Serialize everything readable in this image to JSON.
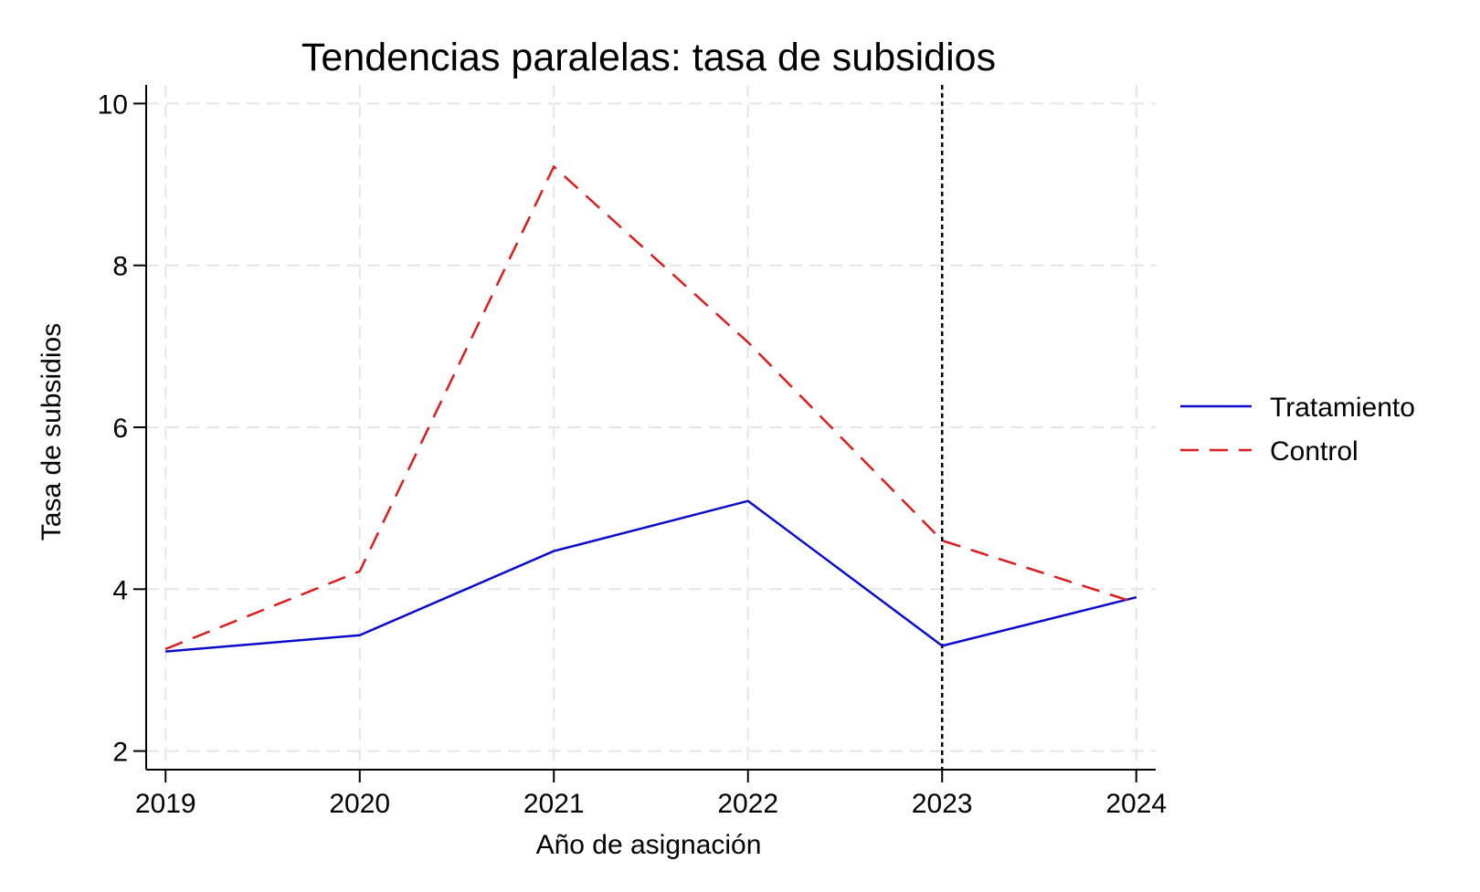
{
  "chart_data": {
    "type": "line",
    "title": "Tendencias paralelas: tasa de subsidios",
    "xlabel": "Año de asignación",
    "ylabel": "Tasa de subsidios",
    "x": [
      2019,
      2020,
      2021,
      2022,
      2023,
      2024
    ],
    "x_tick_labels": [
      "2019",
      "2020",
      "2021",
      "2022",
      "2023",
      "2024"
    ],
    "y_ticks": [
      2,
      4,
      6,
      8,
      10
    ],
    "y_tick_labels": [
      "2",
      "4",
      "6",
      "8",
      "10"
    ],
    "xlim": [
      2018.9,
      2024.1
    ],
    "ylim": [
      1.77,
      10.23
    ],
    "grid": true,
    "legend_position": "right",
    "reference_line": {
      "x": 2023,
      "style": "dotted",
      "color": "#000000"
    },
    "series": [
      {
        "name": "Tratamiento",
        "values": [
          3.23,
          3.43,
          4.47,
          5.09,
          3.3,
          3.9
        ],
        "color": "#0a0acc",
        "style": "solid"
      },
      {
        "name": "Control",
        "values": [
          3.26,
          4.22,
          9.22,
          7.05,
          4.6,
          3.83
        ],
        "color": "#dd1c1c",
        "style": "dashed"
      }
    ]
  }
}
